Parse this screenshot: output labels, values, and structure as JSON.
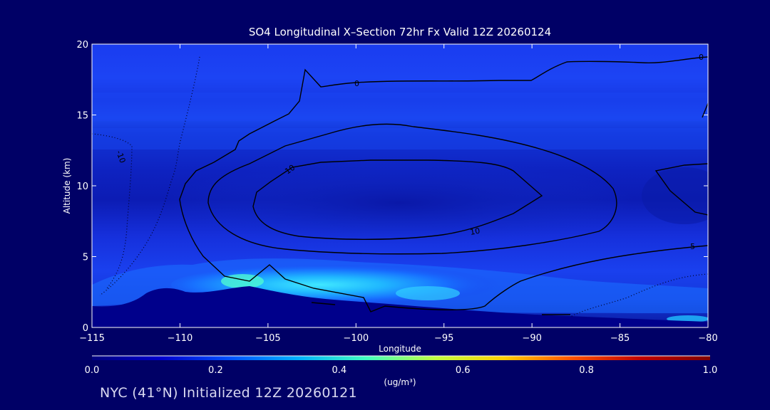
{
  "chart_data": {
    "type": "contour",
    "title": "SO4 Longitudinal X–Section 72hr  Fx Valid 12Z 20260124",
    "xlabel": "Longitude",
    "ylabel": "Altitude (km)",
    "xlim": [
      -115,
      -80
    ],
    "ylim": [
      0,
      20
    ],
    "x_ticks": [
      -115,
      -110,
      -105,
      -100,
      -95,
      -90,
      -85,
      -80
    ],
    "x_tick_labels": [
      "−115",
      "−110",
      "−105",
      "−100",
      "−95",
      "−90",
      "−85",
      "−80"
    ],
    "y_ticks": [
      0,
      5,
      10,
      15,
      20
    ],
    "y_tick_labels": [
      "0",
      "5",
      "10",
      "15",
      "20"
    ],
    "colorbar": {
      "label": "(ug/m³)",
      "range": [
        0.0,
        1.0
      ],
      "ticks": [
        0.0,
        0.2,
        0.4,
        0.6,
        0.8,
        1.0
      ],
      "tick_labels": [
        "0.0",
        "0.2",
        "0.4",
        "0.6",
        "0.8",
        "1.0"
      ],
      "colors": [
        "#000080",
        "#0000cd",
        "#0050ff",
        "#00b0ff",
        "#40ffc0",
        "#c0ff40",
        "#ffd000",
        "#ff5000",
        "#c00000",
        "#800000"
      ]
    },
    "contour_labels": [
      "0",
      "0",
      "5",
      "10",
      "10",
      "-10"
    ],
    "background_color": "#000066",
    "terrain_color": "#00008b"
  },
  "footer": "NYC (41°N) Initialized 12Z 20260121"
}
